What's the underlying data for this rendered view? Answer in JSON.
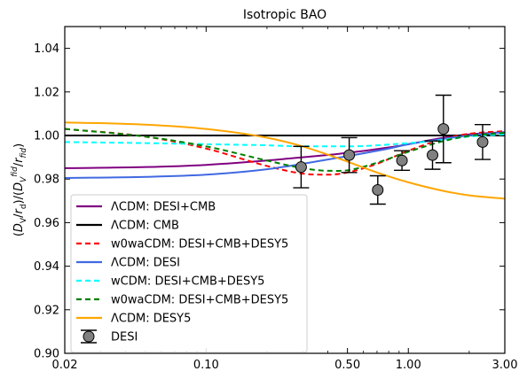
{
  "chart_data": {
    "type": "line",
    "title": "Isotropic BAO",
    "ylabel": "(D_V/r_d)/(D_V^{fid}/r_{fid})",
    "xlabel": "",
    "x_scale": "log",
    "xlim": [
      0.02,
      3.0
    ],
    "ylim": [
      0.9,
      1.05
    ],
    "x_ticks": [
      0.02,
      0.1,
      0.5,
      1.0,
      3.0
    ],
    "x_tick_labels": [
      "0.02",
      "0.10",
      "0.50",
      "1.00",
      "3.00"
    ],
    "y_ticks": [
      0.9,
      0.92,
      0.94,
      0.96,
      0.98,
      1.0,
      1.02,
      1.04
    ],
    "y_tick_labels": [
      "0.90",
      "0.92",
      "0.94",
      "0.96",
      "0.98",
      "1.00",
      "1.02",
      "1.04"
    ],
    "grid": false,
    "legend_position": "lower-left",
    "series": [
      {
        "name": "ΛCDM: DESI+CMB",
        "color": "#800080",
        "dash": "solid",
        "x": [
          0.02,
          0.05,
          0.1,
          0.2,
          0.3,
          0.5,
          0.8,
          1.0,
          1.5,
          2.0,
          3.0
        ],
        "y": [
          0.985,
          0.9855,
          0.9865,
          0.9885,
          0.99,
          0.992,
          0.9945,
          0.996,
          0.999,
          1.0005,
          1.0015
        ]
      },
      {
        "name": "ΛCDM: CMB",
        "color": "#000000",
        "dash": "solid",
        "x": [
          0.02,
          3.0
        ],
        "y": [
          1.0,
          1.0
        ]
      },
      {
        "name": "w0waCDM: DESI+CMB+DESY5",
        "color": "#ff0000",
        "dash": "dashed",
        "x": [
          0.02,
          0.05,
          0.1,
          0.2,
          0.3,
          0.4,
          0.5,
          0.7,
          1.0,
          1.5,
          2.0,
          3.0
        ],
        "y": [
          1.003,
          0.9995,
          0.994,
          0.986,
          0.9825,
          0.982,
          0.983,
          0.987,
          0.993,
          0.9985,
          1.0008,
          1.002
        ]
      },
      {
        "name": "ΛCDM: DESI",
        "color": "#4169e1",
        "dash": "solid",
        "x": [
          0.02,
          0.05,
          0.1,
          0.2,
          0.3,
          0.5,
          0.8,
          1.0,
          1.5,
          2.0,
          3.0
        ],
        "y": [
          0.9805,
          0.981,
          0.982,
          0.9845,
          0.987,
          0.9905,
          0.994,
          0.996,
          0.9985,
          1.0,
          1.0015
        ]
      },
      {
        "name": "wCDM: DESI+CMB+DESY5",
        "color": "#00ffff",
        "dash": "dashed",
        "x": [
          0.02,
          0.05,
          0.1,
          0.2,
          0.3,
          0.5,
          1.0,
          1.5,
          2.0,
          3.0
        ],
        "y": [
          0.997,
          0.9965,
          0.996,
          0.9955,
          0.995,
          0.995,
          0.9965,
          0.998,
          0.9995,
          1.0005
        ]
      },
      {
        "name": "w0waCDM: DESI+CMB+DESY5",
        "color": "#008000",
        "dash": "dashed",
        "x": [
          0.02,
          0.05,
          0.1,
          0.2,
          0.3,
          0.4,
          0.5,
          0.7,
          1.0,
          1.5,
          2.0,
          3.0
        ],
        "y": [
          1.003,
          0.9995,
          0.995,
          0.9885,
          0.985,
          0.9838,
          0.984,
          0.9875,
          0.9925,
          0.9975,
          0.9998,
          1.0012
        ]
      },
      {
        "name": "ΛCDM: DESY5",
        "color": "#ffa500",
        "dash": "solid",
        "x": [
          0.02,
          0.05,
          0.1,
          0.2,
          0.3,
          0.5,
          0.7,
          1.0,
          1.5,
          2.0,
          3.0
        ],
        "y": [
          1.006,
          1.005,
          1.003,
          0.999,
          0.995,
          0.988,
          0.983,
          0.9785,
          0.9745,
          0.9725,
          0.971
        ]
      }
    ],
    "data_points": {
      "name": "DESI",
      "marker_color": "#808080",
      "points": [
        {
          "x": 0.295,
          "y": 0.9855,
          "err": 0.0095
        },
        {
          "x": 0.51,
          "y": 0.991,
          "err": 0.008
        },
        {
          "x": 0.706,
          "y": 0.975,
          "err": 0.0065
        },
        {
          "x": 0.93,
          "y": 0.9885,
          "err": 0.0045
        },
        {
          "x": 1.317,
          "y": 0.991,
          "err": 0.0065
        },
        {
          "x": 1.491,
          "y": 1.003,
          "err": 0.0155
        },
        {
          "x": 2.33,
          "y": 0.997,
          "err": 0.008
        }
      ]
    }
  }
}
